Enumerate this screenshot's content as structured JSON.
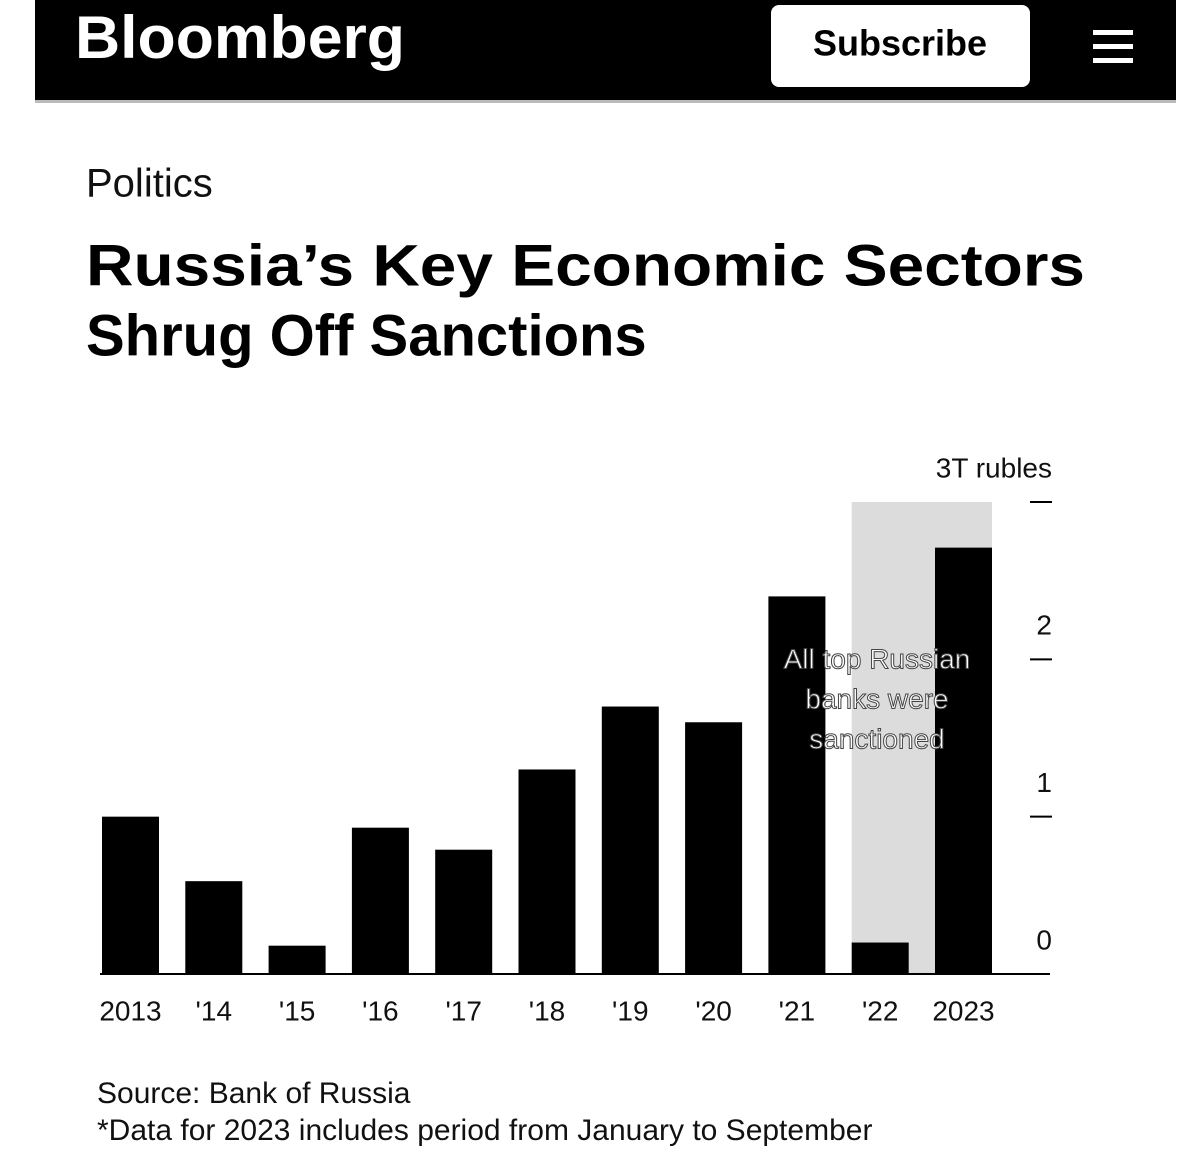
{
  "header": {
    "brand": "Bloomberg",
    "subscribe": "Subscribe"
  },
  "section": "Politics",
  "headline": [
    "Russia’s Key Economic Sectors",
    "Shrug Off Sanctions"
  ],
  "chart_data": {
    "type": "bar",
    "categories": [
      "2013",
      "'14",
      "'15",
      "'16",
      "'17",
      "'18",
      "'19",
      "'20",
      "'21",
      "'22",
      "2023"
    ],
    "values": [
      1.0,
      0.59,
      0.18,
      0.93,
      0.79,
      1.3,
      1.7,
      1.6,
      2.4,
      0.2,
      2.71
    ],
    "color": "#000000",
    "ylim": [
      0,
      3
    ],
    "yticks": [
      0,
      1,
      2,
      {
        "value": 3,
        "label": "3T rubles"
      }
    ],
    "annotation": [
      "All top Russian",
      "banks were",
      "sanctioned"
    ],
    "source": "Source: Bank of Russia",
    "note": "*Data for 2023 includes period from January to September"
  }
}
